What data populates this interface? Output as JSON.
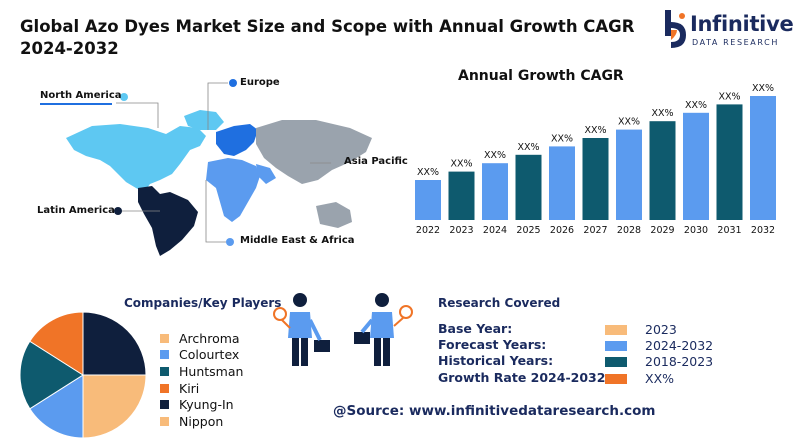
{
  "title": "Global Azo Dyes Market Size and Scope with Annual Growth CAGR 2024-2032",
  "logo": {
    "name": "Infinitive",
    "sub": "DATA RESEARCH"
  },
  "map_labels": {
    "north_america": "North America",
    "europe": "Europe",
    "asia_pacific": "Asia Pacific",
    "latin_america": "Latin America",
    "middle_east_africa": "Middle East & Africa"
  },
  "colors": {
    "light_blue": "#5b9bef",
    "dark_teal": "#0e5a6e",
    "navy": "#0f1f3d",
    "orange": "#f07427",
    "peach": "#f8bb7a",
    "europe_blue": "#1f6fe0",
    "na_blue": "#5ec8f2",
    "grey": "#9aa3ad"
  },
  "chart_data": {
    "type": "bar",
    "title": "Annual Growth CAGR",
    "categories": [
      "2022",
      "2023",
      "2024",
      "2025",
      "2026",
      "2027",
      "2028",
      "2029",
      "2030",
      "2031",
      "2032"
    ],
    "values": [
      1,
      2,
      3,
      4,
      5,
      6,
      7,
      8,
      9,
      10,
      11
    ],
    "data_labels": [
      "XX%",
      "XX%",
      "XX%",
      "XX%",
      "XX%",
      "XX%",
      "XX%",
      "XX%",
      "XX%",
      "XX%",
      "XX%"
    ],
    "bar_colors": [
      "#5b9bef",
      "#0e5a6e",
      "#5b9bef",
      "#0e5a6e",
      "#5b9bef",
      "#0e5a6e",
      "#5b9bef",
      "#0e5a6e",
      "#5b9bef",
      "#0e5a6e",
      "#5b9bef"
    ],
    "grid": false
  },
  "companies": {
    "heading": "Companies/Key Players",
    "items": [
      {
        "name": "Archroma",
        "color": "#f8bb7a"
      },
      {
        "name": "Colourtex",
        "color": "#5b9bef"
      },
      {
        "name": "Huntsman",
        "color": "#0e5a6e"
      },
      {
        "name": "Kiri",
        "color": "#f07427"
      },
      {
        "name": "Kyung-In",
        "color": "#0f1f3d"
      },
      {
        "name": "Nippon",
        "color": "#f8bb7a"
      }
    ]
  },
  "pie_data": {
    "type": "pie",
    "slices": [
      {
        "value": 25,
        "color": "#0f1f3d"
      },
      {
        "value": 25,
        "color": "#f8bb7a"
      },
      {
        "value": 16,
        "color": "#5b9bef"
      },
      {
        "value": 18,
        "color": "#0e5a6e"
      },
      {
        "value": 16,
        "color": "#f07427"
      }
    ]
  },
  "research": {
    "heading": "Research Covered",
    "rows": [
      {
        "label": "Base Year:",
        "value": "2023",
        "color": "#f8bb7a"
      },
      {
        "label": "Forecast Years:",
        "value": "2024-2032",
        "color": "#5b9bef"
      },
      {
        "label": "Historical Years:",
        "value": "2018-2023",
        "color": "#0e5a6e"
      },
      {
        "label": "Growth Rate 2024-2032:",
        "value": "XX%",
        "color": "#f07427"
      }
    ]
  },
  "source": "@Source: www.infinitivedataresearch.com"
}
